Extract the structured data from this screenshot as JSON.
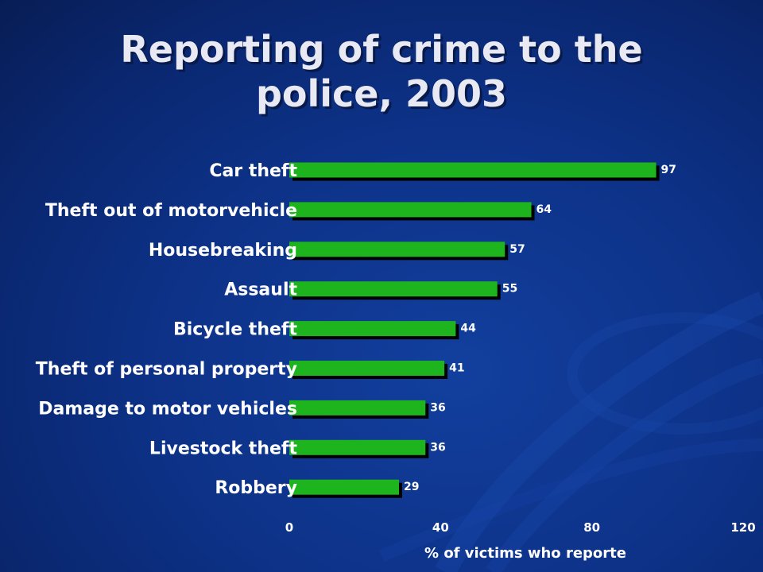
{
  "slide": {
    "title_line1": "Reporting of crime to the",
    "title_line2": "police, 2003"
  },
  "colors": {
    "background": "#0d3288",
    "bar": "#1eb41e",
    "bar_shadow": "#000000",
    "text": "#ffffff",
    "title": "#e9e9f3"
  },
  "chart_data": {
    "type": "bar",
    "orientation": "horizontal",
    "title": "Reporting of crime to the police, 2003",
    "xlabel": "% of victims who reporte",
    "ylabel": "",
    "categories": [
      "Car theft",
      "Theft out of motorvehicle",
      "Housebreaking",
      "Assault",
      "Bicycle theft",
      "Theft of personal property",
      "Damage to motor vehicles",
      "Livestock theft",
      "Robbery"
    ],
    "values": [
      97,
      64,
      57,
      55,
      44,
      41,
      36,
      36,
      29
    ],
    "xlim": [
      0,
      120
    ],
    "xticks": [
      0,
      40,
      80,
      120
    ],
    "data_labels": true,
    "grid": false,
    "legend": "none"
  }
}
